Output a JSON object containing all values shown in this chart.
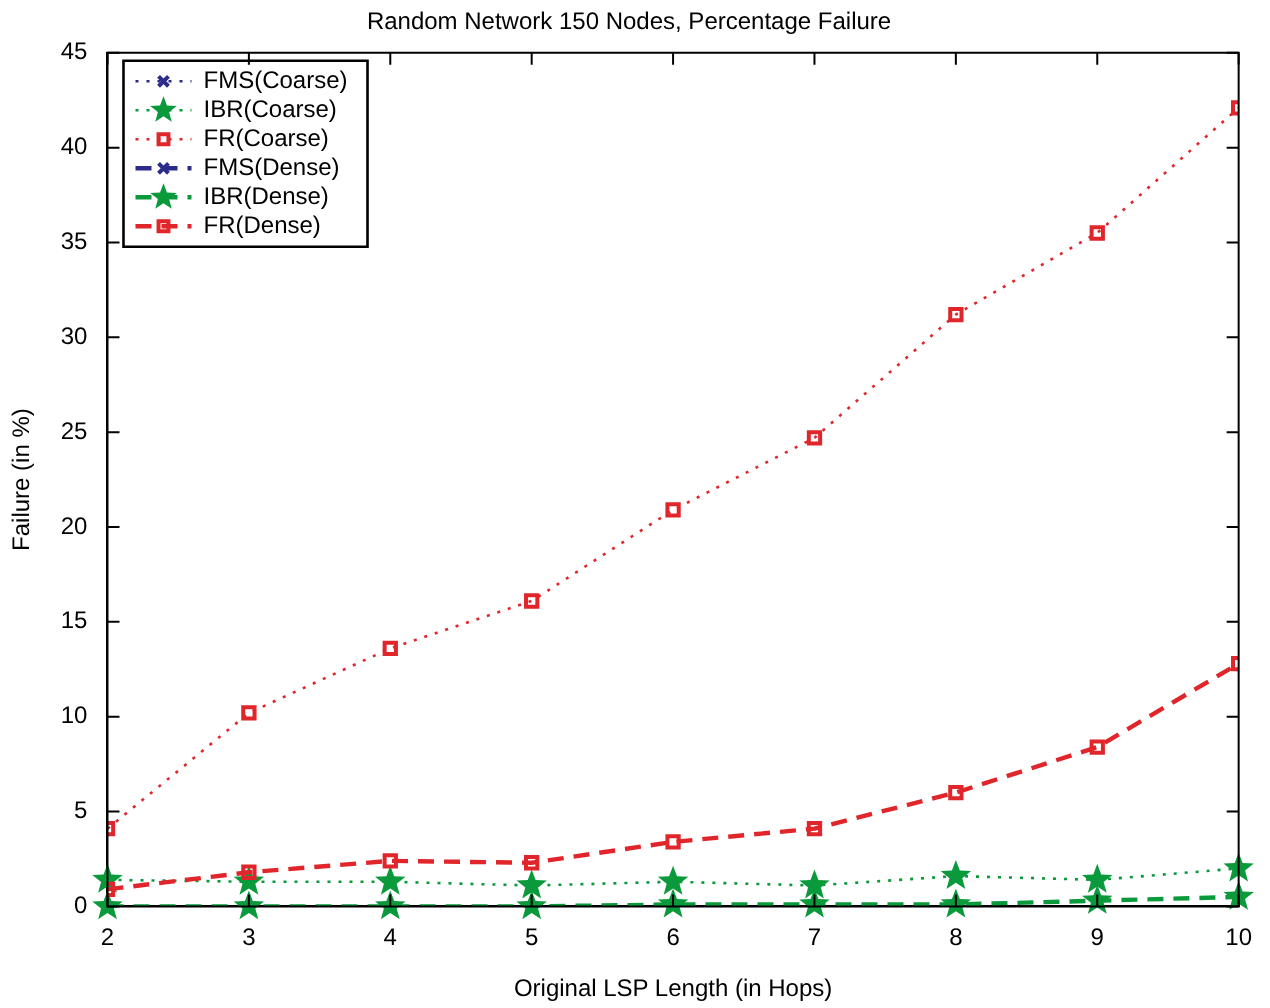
{
  "chart_data": {
    "type": "line",
    "title": "Random Network 150 Nodes, Percentage Failure",
    "xlabel": "Original LSP Length (in Hops)",
    "ylabel": "Failure (in %)",
    "x": [
      2,
      3,
      4,
      5,
      6,
      7,
      8,
      9,
      10
    ],
    "xlim": [
      2,
      10
    ],
    "xticks": [
      2,
      3,
      4,
      5,
      6,
      7,
      8,
      9,
      10
    ],
    "ylim": [
      0,
      45
    ],
    "yticks": [
      0,
      5,
      10,
      15,
      20,
      25,
      30,
      35,
      40,
      45
    ],
    "grid": false,
    "legend": "top left",
    "series": [
      {
        "name": "FMS(Coarse)",
        "color": "#2b2b8c",
        "marker": "cross",
        "line_style": "dotted",
        "values": [
          null,
          null,
          null,
          null,
          null,
          null,
          null,
          null,
          null
        ]
      },
      {
        "name": "IBR(Coarse)",
        "color": "#0a9a3c",
        "marker": "star",
        "line_style": "dotted",
        "values": [
          1.4,
          1.3,
          1.3,
          1.1,
          1.3,
          1.1,
          1.6,
          1.4,
          2.0
        ]
      },
      {
        "name": "FR(Coarse)",
        "color": "#e0262b",
        "marker": "square",
        "line_style": "dotted",
        "values": [
          4.1,
          10.2,
          13.6,
          16.1,
          20.9,
          24.7,
          31.2,
          35.5,
          42.1
        ]
      },
      {
        "name": "FMS(Dense)",
        "color": "#2b2b8c",
        "marker": "cross",
        "line_style": "dashed",
        "values": [
          null,
          null,
          null,
          null,
          null,
          null,
          null,
          null,
          null
        ]
      },
      {
        "name": "IBR(Dense)",
        "color": "#0a9a3c",
        "marker": "star",
        "line_style": "dashed",
        "values": [
          0,
          0,
          0,
          0,
          0.1,
          0.1,
          0.1,
          0.3,
          0.5
        ]
      },
      {
        "name": "FR(Dense)",
        "color": "#e0262b",
        "marker": "square",
        "line_style": "dashed",
        "values": [
          0.9,
          1.8,
          2.4,
          2.3,
          3.4,
          4.1,
          6.0,
          8.4,
          12.8
        ]
      }
    ]
  }
}
